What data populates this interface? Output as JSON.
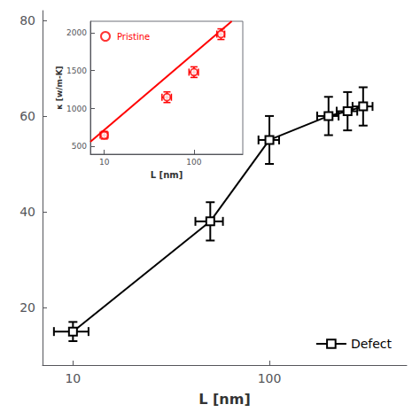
{
  "chart_data": [
    {
      "type": "line",
      "x": [
        10,
        50,
        100,
        200,
        250,
        300
      ],
      "xlabel": "L [nm]",
      "xlim": [
        7,
        500
      ],
      "xticks": [
        10,
        100
      ],
      "ylim": [
        8,
        82
      ],
      "yticks": [
        20,
        40,
        60,
        80
      ],
      "log": "x",
      "grid": false,
      "legend": "lower right",
      "series": [
        {
          "name": "Defect",
          "color": "black",
          "marker": "square",
          "values": [
            15,
            38,
            55,
            60,
            61,
            62
          ],
          "xerr": [
            2,
            8,
            12,
            25,
            30,
            35
          ],
          "yerr": [
            2,
            4,
            5,
            4,
            4,
            4
          ]
        }
      ]
    },
    {
      "type": "scatter",
      "x": [
        10,
        50,
        100,
        200
      ],
      "xlabel": "L [nm]",
      "ylabel": "κ [w/m-K]",
      "xlim": [
        7,
        350
      ],
      "xticks": [
        10,
        100
      ],
      "ylim": [
        400,
        2150
      ],
      "yticks": [
        500,
        1000,
        1500,
        2000
      ],
      "log": "x",
      "grid": false,
      "legend": "upper left",
      "series": [
        {
          "name": "Pristine",
          "color": "red",
          "marker": "circle",
          "values": [
            650,
            1150,
            1480,
            1980
          ],
          "xerr": [
            1,
            6,
            12,
            20
          ],
          "yerr": [
            50,
            70,
            70,
            70
          ]
        },
        {
          "type": "line",
          "color": "red",
          "x": [
            7,
            263.6
          ],
          "values": [
            564.4,
            2150
          ]
        }
      ]
    }
  ]
}
